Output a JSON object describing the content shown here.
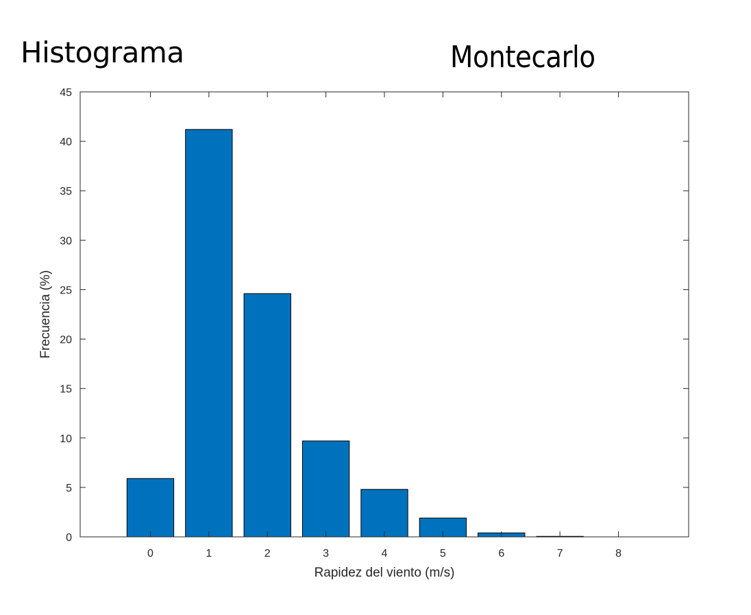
{
  "headings": {
    "left": "Histograma",
    "right": "Montecarlo"
  },
  "chart_data": {
    "type": "bar",
    "title": "",
    "xlabel": "Rapidez del viento (m/s)",
    "ylabel": "Frecuencia (%)",
    "categories": [
      "0",
      "1",
      "2",
      "3",
      "4",
      "5",
      "6",
      "7",
      "8"
    ],
    "x": [
      0,
      1,
      2,
      3,
      4,
      5,
      6,
      7,
      8
    ],
    "values": [
      5.9,
      41.2,
      24.6,
      9.7,
      4.8,
      1.9,
      0.4,
      0.05,
      0
    ],
    "xlim": [
      -1.2,
      9.2
    ],
    "ylim": [
      0,
      45
    ],
    "yticks": [
      0,
      5,
      10,
      15,
      20,
      25,
      30,
      35,
      40,
      45
    ],
    "grid": false,
    "legend": "none",
    "bar_color": "#0072BD",
    "bar_edge_color": "#000000"
  }
}
